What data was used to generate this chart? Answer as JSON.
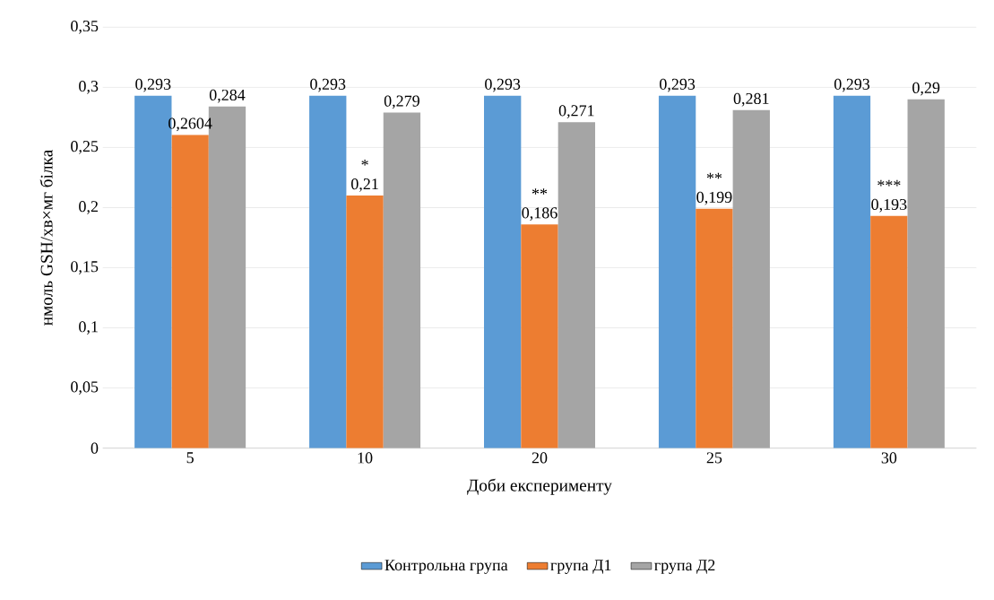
{
  "chart_data": {
    "type": "bar",
    "xlabel": "Доби експерименту",
    "ylabel": "нмоль GSH/хв×мг білка",
    "categories": [
      "5",
      "10",
      "20",
      "25",
      "30"
    ],
    "series": [
      {
        "name": "Контрольна група",
        "color": "#5b9bd5",
        "values": [
          0.293,
          0.293,
          0.293,
          0.293,
          0.293
        ],
        "value_labels": [
          "0,293",
          "0,293",
          "0,293",
          "0,293",
          "0,293"
        ]
      },
      {
        "name": "група Д1",
        "color": "#ed7d31",
        "values": [
          0.2604,
          0.21,
          0.186,
          0.199,
          0.193
        ],
        "value_labels": [
          "0,2604",
          "0,21",
          "0,186",
          "0,199",
          "0,193"
        ]
      },
      {
        "name": "група Д2",
        "color": "#a5a5a5",
        "values": [
          0.284,
          0.279,
          0.271,
          0.281,
          0.29
        ],
        "value_labels": [
          "0,284",
          "0,279",
          "0,271",
          "0,281",
          "0,29"
        ]
      }
    ],
    "ylim": [
      0,
      0.35
    ],
    "yticks": [
      {
        "value": 0,
        "label": "0"
      },
      {
        "value": 0.05,
        "label": "0,05"
      },
      {
        "value": 0.1,
        "label": "0,1"
      },
      {
        "value": 0.15,
        "label": "0,15"
      },
      {
        "value": 0.2,
        "label": "0,2"
      },
      {
        "value": 0.25,
        "label": "0,25"
      },
      {
        "value": 0.3,
        "label": "0,3"
      },
      {
        "value": 0.35,
        "label": "0,35"
      }
    ],
    "grid": "y",
    "legend": "bottom",
    "annotations": [
      {
        "text": "*",
        "x": "10",
        "y": 0.21
      },
      {
        "text": "**",
        "x": "20",
        "y": 0.186
      },
      {
        "text": "**",
        "x": "25",
        "y": 0.199
      },
      {
        "text": "***",
        "x": "30",
        "y": 0.193
      }
    ]
  }
}
